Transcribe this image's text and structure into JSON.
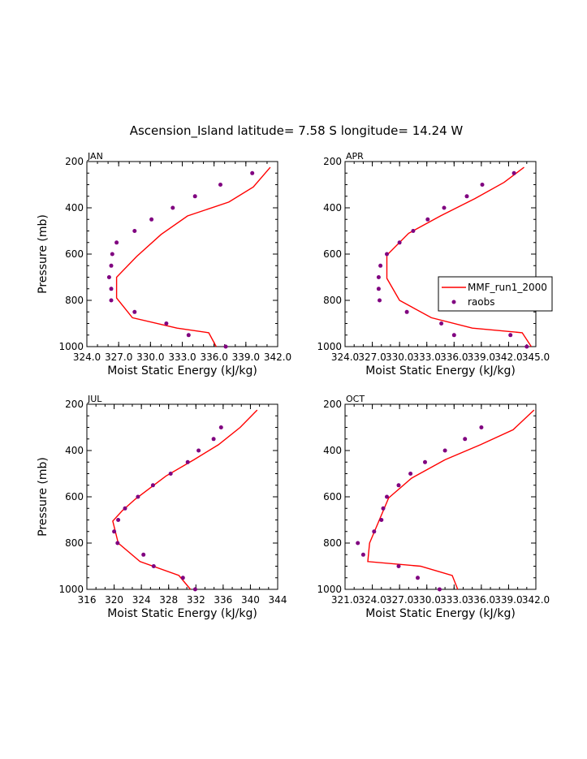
{
  "figure_title": "Ascension_Island  latitude= 7.58 S longitude= 14.24 W",
  "legend": {
    "model_label": "MMF_run1_2000",
    "obs_label": "raobs"
  },
  "colors": {
    "model_line": "#ff0000",
    "obs_points": "#800080"
  },
  "chart_data": [
    {
      "type": "line",
      "panel": "JAN",
      "title": "JAN",
      "xlabel": "Moist Static Energy (kJ/kg)",
      "ylabel": "Pressure (mb)",
      "xlim": [
        324.0,
        342.0
      ],
      "ylim": [
        1000,
        200
      ],
      "x_ticks": [
        "324.0",
        "327.0",
        "330.0",
        "333.0",
        "336.0",
        "339.0",
        "342.0"
      ],
      "y_ticks": [
        "200",
        "400",
        "600",
        "800",
        "1000"
      ],
      "series": [
        {
          "name": "MMF_run1_2000",
          "kind": "line",
          "x": [
            341.3,
            339.7,
            337.4,
            333.5,
            331.0,
            328.7,
            326.8,
            326.8,
            328.3,
            332.5,
            335.5,
            336.2
          ],
          "y": [
            225,
            310,
            375,
            435,
            515,
            610,
            700,
            790,
            875,
            920,
            940,
            1000
          ]
        },
        {
          "name": "raobs",
          "kind": "points",
          "x": [
            339.6,
            336.6,
            334.2,
            332.1,
            330.1,
            328.5,
            326.8,
            326.4,
            326.3,
            326.1,
            326.3,
            326.3,
            328.5,
            331.5,
            333.6,
            337.1
          ],
          "y": [
            250,
            300,
            350,
            400,
            450,
            500,
            550,
            600,
            650,
            700,
            750,
            800,
            850,
            900,
            950,
            1000
          ]
        }
      ]
    },
    {
      "type": "line",
      "panel": "APR",
      "title": "APR",
      "xlabel": "Moist Static Energy (kJ/kg)",
      "ylabel": "",
      "xlim": [
        324.0,
        345.0
      ],
      "ylim": [
        1000,
        200
      ],
      "x_ticks": [
        "324.0",
        "327.0",
        "330.0",
        "333.0",
        "336.0",
        "339.0",
        "342.0",
        "345.0"
      ],
      "y_ticks": [
        "200",
        "400",
        "600",
        "800",
        "1000"
      ],
      "series": [
        {
          "name": "MMF_run1_2000",
          "kind": "line",
          "x": [
            343.7,
            341.5,
            338.3,
            334.5,
            331.0,
            328.6,
            328.6,
            330.0,
            333.5,
            338.0,
            343.5,
            344.5
          ],
          "y": [
            225,
            290,
            360,
            435,
            510,
            605,
            705,
            800,
            875,
            920,
            940,
            1000
          ]
        },
        {
          "name": "raobs",
          "kind": "points",
          "x": [
            342.6,
            339.1,
            337.4,
            334.9,
            333.1,
            331.5,
            330.0,
            328.6,
            327.9,
            327.7,
            327.7,
            327.8,
            330.8,
            334.6,
            336.0,
            342.2,
            344.0
          ],
          "y": [
            250,
            300,
            350,
            400,
            450,
            500,
            550,
            600,
            650,
            700,
            750,
            800,
            850,
            900,
            950,
            950,
            1000
          ]
        }
      ]
    },
    {
      "type": "line",
      "panel": "JUL",
      "title": "JUL",
      "xlabel": "Moist Static Energy (kJ/kg)",
      "ylabel": "Pressure (mb)",
      "xlim": [
        316,
        344
      ],
      "ylim": [
        1000,
        200
      ],
      "x_ticks": [
        "316",
        "320",
        "324",
        "328",
        "332",
        "336",
        "340",
        "344"
      ],
      "y_ticks": [
        "200",
        "400",
        "600",
        "800",
        "1000"
      ],
      "series": [
        {
          "name": "MMF_run1_2000",
          "kind": "line",
          "x": [
            341.0,
            338.5,
            335.3,
            331.7,
            327.6,
            323.1,
            321.2,
            319.8,
            320.6,
            323.8,
            329.5,
            331.2
          ],
          "y": [
            225,
            300,
            375,
            440,
            510,
            610,
            660,
            705,
            800,
            880,
            940,
            1000
          ]
        },
        {
          "name": "raobs",
          "kind": "points",
          "x": [
            335.7,
            334.6,
            332.4,
            330.8,
            328.3,
            325.7,
            323.5,
            321.6,
            320.6,
            320.0,
            320.5,
            324.3,
            325.8,
            330.1,
            331.9
          ],
          "y": [
            300,
            350,
            400,
            450,
            500,
            550,
            600,
            650,
            700,
            750,
            800,
            850,
            900,
            950,
            1000
          ]
        }
      ]
    },
    {
      "type": "line",
      "panel": "OCT",
      "title": "OCT",
      "xlabel": "Moist Static Energy (kJ/kg)",
      "ylabel": "",
      "xlim": [
        321.0,
        342.0
      ],
      "ylim": [
        1000,
        200
      ],
      "x_ticks": [
        "321.0",
        "324.0",
        "327.0",
        "330.0",
        "333.0",
        "336.0",
        "339.0",
        "342.0"
      ],
      "y_ticks": [
        "200",
        "400",
        "600",
        "800",
        "1000"
      ],
      "series": [
        {
          "name": "MMF_run1_2000",
          "kind": "line",
          "x": [
            341.8,
            339.5,
            335.9,
            332.0,
            328.3,
            325.8,
            323.7,
            323.5,
            329.3,
            332.8,
            333.4
          ],
          "y": [
            225,
            310,
            375,
            440,
            520,
            605,
            800,
            880,
            900,
            940,
            1000
          ]
        },
        {
          "name": "raobs",
          "kind": "points",
          "x": [
            336.0,
            334.2,
            332.0,
            329.8,
            328.2,
            326.9,
            325.6,
            325.2,
            325.0,
            324.2,
            322.4,
            323.0,
            326.9,
            329.0,
            331.4
          ],
          "y": [
            300,
            350,
            400,
            450,
            500,
            550,
            600,
            650,
            700,
            750,
            800,
            850,
            900,
            950,
            1000
          ]
        }
      ]
    }
  ]
}
